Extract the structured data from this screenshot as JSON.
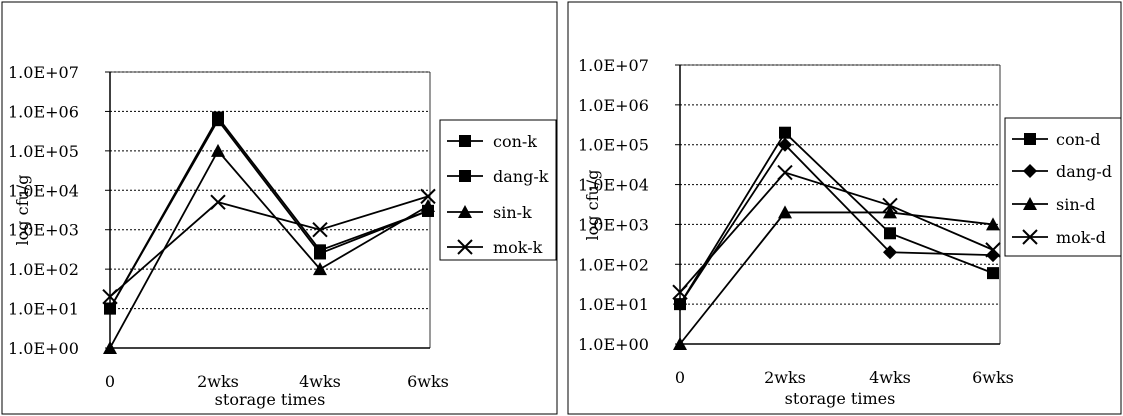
{
  "chart_data": [
    {
      "type": "line",
      "title": "",
      "xlabel": "storage times",
      "ylabel": "log cfu/g",
      "yscale": "log",
      "ylim": [
        1,
        10000000
      ],
      "y_ticks": [
        "1.0E+00",
        "1.0E+01",
        "1.0E+02",
        "1.0E+03",
        "1.0E+04",
        "1.0E+05",
        "1.0E+06",
        "1.0E+07"
      ],
      "categories": [
        "0",
        "2wks",
        "4wks",
        "6wks"
      ],
      "grid": "horizontal dotted",
      "legend_position": "right",
      "series": [
        {
          "name": "con-k",
          "marker": "square",
          "values": [
            10,
            600000,
            250,
            3000
          ]
        },
        {
          "name": "dang-k",
          "marker": "square",
          "values": [
            10,
            700000,
            300,
            3000
          ]
        },
        {
          "name": "sin-k",
          "marker": "triangle",
          "values": [
            1,
            100000,
            100,
            4000
          ]
        },
        {
          "name": "mok-k",
          "marker": "x",
          "values": [
            20,
            5000,
            1000,
            7000
          ]
        }
      ]
    },
    {
      "type": "line",
      "title": "",
      "xlabel": "storage times",
      "ylabel": "log cfu/g",
      "yscale": "log",
      "ylim": [
        1,
        10000000
      ],
      "y_ticks": [
        "1.0E+00",
        "1.0E+01",
        "1.0E+02",
        "1.0E+03",
        "1.0E+04",
        "1.0E+05",
        "1.0E+06",
        "1.0E+07"
      ],
      "categories": [
        "0",
        "2wks",
        "4wks",
        "6wks"
      ],
      "grid": "horizontal dotted",
      "legend_position": "right",
      "series": [
        {
          "name": "con-d",
          "marker": "square",
          "values": [
            10,
            200000,
            600,
            60
          ]
        },
        {
          "name": "dang-d",
          "marker": "diamond",
          "values": [
            10,
            100000,
            200,
            170
          ]
        },
        {
          "name": "sin-d",
          "marker": "triangle",
          "values": [
            1,
            2000,
            2000,
            1000
          ]
        },
        {
          "name": "mok-d",
          "marker": "x",
          "values": [
            20,
            20000,
            3000,
            230
          ]
        }
      ]
    }
  ]
}
